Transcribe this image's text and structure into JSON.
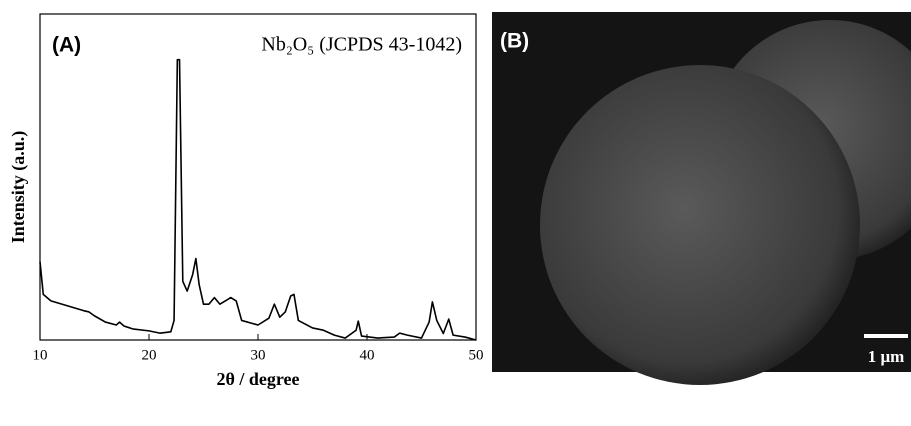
{
  "chart_data": {
    "type": "line",
    "panel_label": "(A)",
    "annotation": "Nb₂O₅ (JCPDS 43-1042)",
    "x_label": "2θ / degree",
    "y_label": "Intensity (a.u.)",
    "x": [
      10,
      10.3,
      11,
      12,
      13,
      14,
      14.5,
      15,
      16,
      17,
      17.3,
      17.7,
      18.5,
      20,
      21,
      22,
      22.3,
      22.6,
      22.8,
      23.1,
      23.5,
      24,
      24.3,
      24.6,
      25,
      25.5,
      26,
      26.5,
      27,
      27.5,
      28,
      28.5,
      30,
      31,
      31.5,
      32,
      32.5,
      33,
      33.3,
      33.7,
      35,
      36,
      37,
      38,
      39,
      39.2,
      39.5,
      41,
      42.5,
      43,
      43.7,
      45,
      45.7,
      46,
      46.4,
      47,
      47.5,
      47.9,
      49,
      50
    ],
    "values": [
      24,
      14,
      12,
      11,
      10,
      9,
      8.6,
      7.4,
      5.5,
      4.6,
      5.5,
      4.3,
      3.4,
      2.8,
      2.1,
      2.5,
      6,
      86,
      86,
      18,
      15,
      20,
      25,
      17,
      11,
      11,
      13,
      11,
      12,
      13,
      12,
      6,
      4.6,
      6.7,
      11,
      7,
      8.6,
      13.5,
      14,
      6,
      3.7,
      3,
      1.5,
      0.6,
      3,
      5.8,
      1.2,
      0.6,
      0.9,
      2.1,
      1.5,
      0.6,
      5.5,
      11.7,
      6,
      2,
      6.4,
      1.5,
      0.9,
      0
    ],
    "color": "#000000",
    "xlim": [
      10,
      50
    ],
    "xticks": [
      10,
      20,
      30,
      40,
      50
    ],
    "ylim": [
      0,
      100
    ]
  },
  "image_panel": {
    "label": "(B)",
    "scale_bar": "1 μm"
  }
}
